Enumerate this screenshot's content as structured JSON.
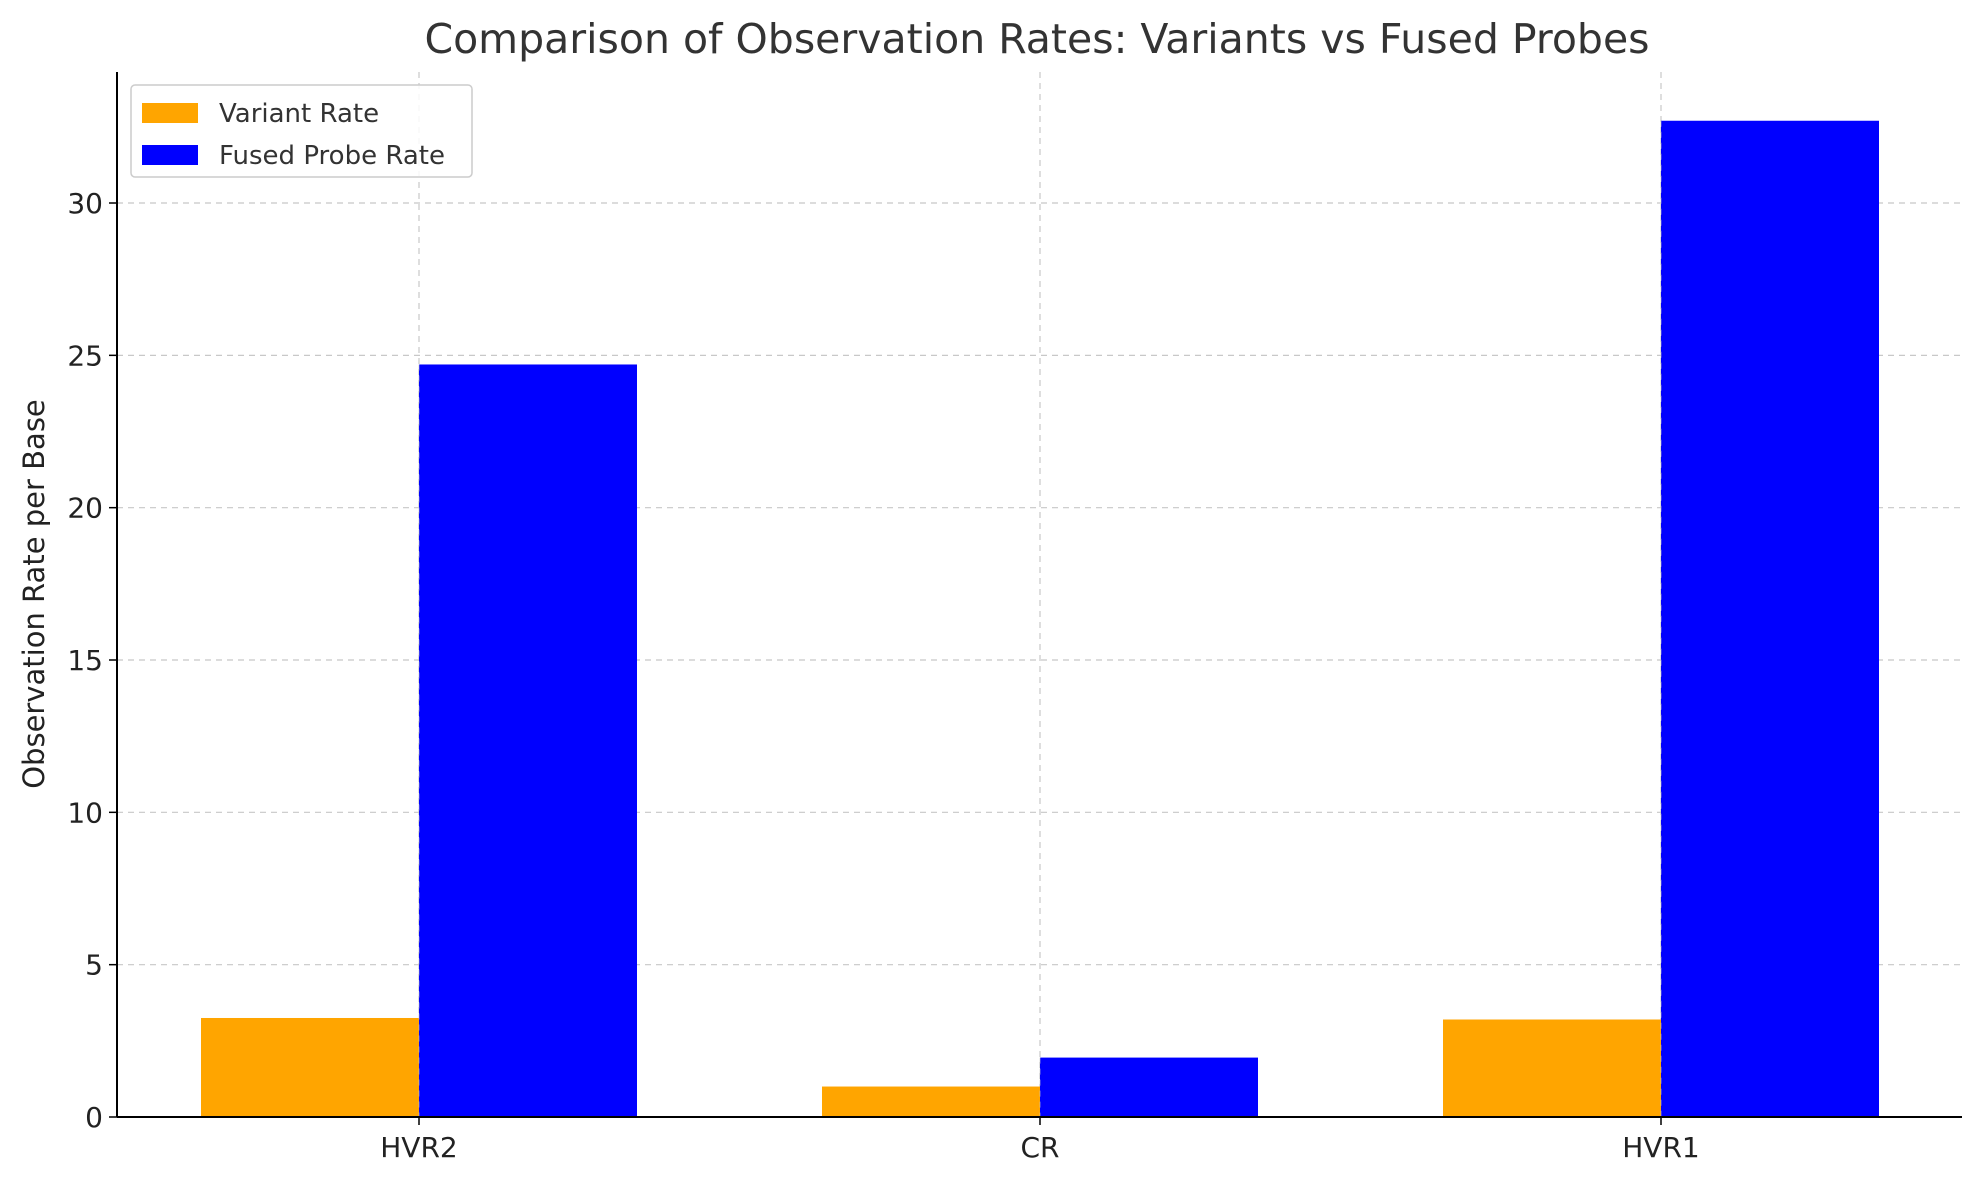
{
  "chart_data": {
    "type": "bar",
    "title": "Comparison of Observation Rates: Variants vs Fused Probes",
    "xlabel": "",
    "ylabel": "Observation Rate per Base",
    "categories": [
      "HVR2",
      "CR",
      "HVR1"
    ],
    "series": [
      {
        "name": "Variant Rate",
        "color": "#FFA500",
        "values": [
          3.25,
          1.0,
          3.2
        ]
      },
      {
        "name": "Fused Probe Rate",
        "color": "#0000FF",
        "values": [
          24.7,
          1.95,
          32.7
        ]
      }
    ],
    "ylim": [
      0,
      34.3
    ],
    "yticks": [
      0,
      5,
      10,
      15,
      20,
      25,
      30
    ],
    "grid": true,
    "legend_position": "top-left"
  }
}
